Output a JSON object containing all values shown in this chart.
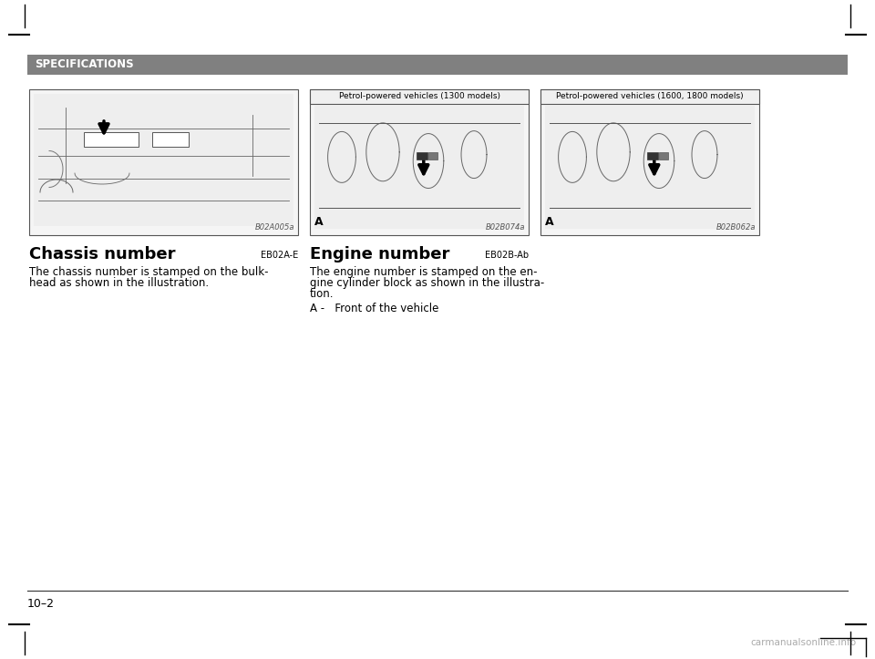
{
  "bg_color": "#ffffff",
  "header_bg": "#808080",
  "header_text": "SPECIFICATIONS",
  "header_text_color": "#ffffff",
  "header_font_size": 8.5,
  "page_number": "10–2",
  "watermark": "carmanualsonline.info",
  "section1_title": "Chassis number",
  "section1_code": "EB02A-E",
  "section1_img_label": "B02A005a",
  "section1_text_line1": "The chassis number is stamped on the bulk-",
  "section1_text_line2": "head as shown in the illustration.",
  "section2_title": "Engine number",
  "section2_code": "EB02B-Ab",
  "section2_img_label": "B02B074a",
  "section2_img_title": "Petrol-powered vehicles (1300 models)",
  "section2_img_marker": "A",
  "section2_text_line1": "The engine number is stamped on the en-",
  "section2_text_line2": "gine cylinder block as shown in the illustra-",
  "section2_text_line3": "tion.",
  "section2_note": "A -   Front of the vehicle",
  "section3_img_label": "B02B062a",
  "section3_img_title": "Petrol-powered vehicles (1600, 1800 models)",
  "section3_img_marker": "A",
  "text_color": "#000000",
  "img_border_color": "#555555",
  "img_title_bg": "#f0f0f0",
  "img_bg": "#f5f5f5"
}
